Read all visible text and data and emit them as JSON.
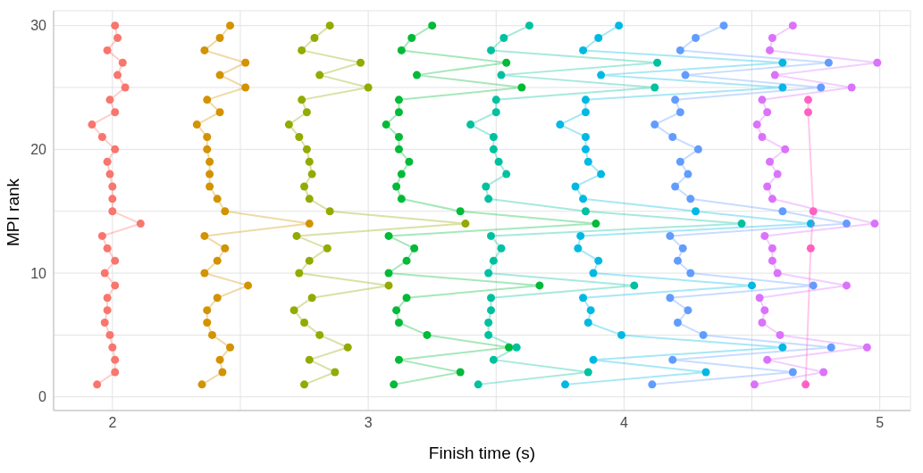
{
  "chart_data": {
    "type": "line",
    "xlabel": "Finish time (s)",
    "ylabel": "MPI rank",
    "marker": "circle",
    "line_style": "solid",
    "grid": true,
    "xlim": [
      1.77,
      5.12
    ],
    "xticks": [
      2,
      {
        "value": 2.5,
        "label": null
      },
      3,
      {
        "value": 3.5,
        "label": null
      },
      4,
      {
        "value": 4.5,
        "label": null
      },
      5
    ],
    "ylim": [
      -1.1,
      31.2
    ],
    "yticks": [
      0,
      {
        "value": 5,
        "label": null
      },
      10,
      {
        "value": 15,
        "label": null
      },
      20,
      {
        "value": 25,
        "label": null
      },
      30
    ],
    "series": [
      {
        "color": "#f8766d",
        "values": [
          1,
          2,
          3,
          4,
          5,
          6,
          7,
          8,
          9,
          10,
          11,
          12,
          13,
          14,
          15,
          16,
          17,
          18,
          19,
          20,
          21,
          22,
          23,
          24,
          25,
          26,
          27,
          28,
          29,
          30
        ],
        "x": [
          1.94,
          2.01,
          2.01,
          2.0,
          1.99,
          1.97,
          1.98,
          1.98,
          2.01,
          1.97,
          2.01,
          1.98,
          1.96,
          2.11,
          2.0,
          2.0,
          2.0,
          1.99,
          1.98,
          2.01,
          1.96,
          1.92,
          2.01,
          1.99,
          2.05,
          2.02,
          2.04,
          1.98,
          2.02,
          2.01
        ]
      },
      {
        "color": "#d39200",
        "values": [
          1,
          2,
          3,
          4,
          5,
          6,
          7,
          8,
          9,
          10,
          11,
          12,
          13,
          14,
          15,
          16,
          17,
          18,
          19,
          20,
          21,
          22,
          23,
          24,
          25,
          26,
          27,
          28,
          29,
          30
        ],
        "x": [
          2.35,
          2.43,
          2.42,
          2.46,
          2.39,
          2.37,
          2.37,
          2.41,
          2.53,
          2.36,
          2.41,
          2.44,
          2.36,
          2.77,
          2.44,
          2.41,
          2.38,
          2.38,
          2.38,
          2.37,
          2.37,
          2.33,
          2.42,
          2.37,
          2.52,
          2.42,
          2.52,
          2.36,
          2.42,
          2.46
        ]
      },
      {
        "color": "#93aa00",
        "values": [
          1,
          2,
          3,
          4,
          5,
          6,
          7,
          8,
          9,
          10,
          11,
          12,
          13,
          14,
          15,
          16,
          17,
          18,
          19,
          20,
          21,
          22,
          23,
          24,
          25,
          26,
          27,
          28,
          29,
          30
        ],
        "x": [
          2.75,
          2.87,
          2.77,
          2.92,
          2.81,
          2.75,
          2.71,
          2.78,
          3.08,
          2.73,
          2.77,
          2.84,
          2.72,
          3.38,
          2.85,
          2.77,
          2.75,
          2.78,
          2.77,
          2.76,
          2.73,
          2.69,
          2.76,
          2.74,
          3.0,
          2.81,
          2.97,
          2.74,
          2.79,
          2.85
        ]
      },
      {
        "color": "#00ba38",
        "values": [
          1,
          2,
          3,
          4,
          5,
          6,
          7,
          8,
          9,
          10,
          11,
          12,
          13,
          14,
          15,
          16,
          17,
          18,
          19,
          20,
          21,
          22,
          23,
          24,
          25,
          26,
          27,
          28,
          29,
          30
        ],
        "x": [
          3.1,
          3.36,
          3.12,
          3.55,
          3.23,
          3.12,
          3.11,
          3.15,
          3.67,
          3.08,
          3.15,
          3.18,
          3.08,
          3.89,
          3.36,
          3.13,
          3.11,
          3.13,
          3.16,
          3.12,
          3.12,
          3.07,
          3.12,
          3.12,
          3.6,
          3.19,
          3.54,
          3.13,
          3.17,
          3.25
        ]
      },
      {
        "color": "#00c19f",
        "values": [
          1,
          2,
          3,
          4,
          5,
          6,
          7,
          8,
          9,
          10,
          11,
          12,
          13,
          14,
          15,
          16,
          17,
          18,
          19,
          20,
          21,
          22,
          23,
          24,
          25,
          26,
          27,
          28,
          29,
          30
        ],
        "x": [
          3.43,
          3.86,
          3.49,
          3.58,
          3.47,
          3.47,
          3.48,
          3.48,
          4.04,
          3.47,
          3.49,
          3.52,
          3.48,
          4.46,
          3.85,
          3.47,
          3.46,
          3.54,
          3.51,
          3.49,
          3.49,
          3.4,
          3.5,
          3.5,
          4.12,
          3.52,
          4.13,
          3.48,
          3.53,
          3.63
        ]
      },
      {
        "color": "#00b9e3",
        "values": [
          1,
          2,
          3,
          4,
          5,
          6,
          7,
          8,
          9,
          10,
          11,
          12,
          13,
          14,
          15,
          16,
          17,
          18,
          19,
          20,
          21,
          22,
          23,
          24,
          25,
          26,
          27,
          28,
          29,
          30
        ],
        "x": [
          3.77,
          4.32,
          3.88,
          4.62,
          3.99,
          3.86,
          3.87,
          3.84,
          4.5,
          3.88,
          3.9,
          3.82,
          3.83,
          4.73,
          4.28,
          3.84,
          3.81,
          3.91,
          3.86,
          3.85,
          3.85,
          3.75,
          3.85,
          3.85,
          4.62,
          3.91,
          4.62,
          3.84,
          3.9,
          3.98
        ]
      },
      {
        "color": "#619cff",
        "values": [
          1,
          2,
          3,
          4,
          5,
          6,
          7,
          8,
          9,
          10,
          11,
          12,
          13,
          14,
          15,
          16,
          17,
          18,
          19,
          20,
          21,
          22,
          23,
          24,
          25,
          26,
          27,
          28,
          29,
          30
        ],
        "x": [
          4.11,
          4.66,
          4.19,
          4.81,
          4.31,
          4.21,
          4.25,
          4.18,
          4.74,
          4.26,
          4.21,
          4.23,
          4.18,
          4.87,
          4.62,
          4.26,
          4.2,
          4.25,
          4.22,
          4.29,
          4.19,
          4.12,
          4.22,
          4.2,
          4.77,
          4.24,
          4.8,
          4.22,
          4.28,
          4.39
        ]
      },
      {
        "color": "#db72fb",
        "values": [
          1,
          2,
          3,
          4,
          5,
          6,
          7,
          8,
          9,
          10,
          11,
          12,
          13,
          14,
          null,
          16,
          17,
          18,
          19,
          20,
          21,
          22,
          23,
          24,
          25,
          26,
          27,
          28,
          29,
          30
        ],
        "x": [
          4.51,
          4.78,
          4.56,
          4.95,
          4.61,
          4.54,
          4.55,
          4.53,
          4.87,
          4.6,
          4.58,
          4.58,
          4.55,
          4.98,
          null,
          4.58,
          4.56,
          4.6,
          4.57,
          4.63,
          4.54,
          4.52,
          4.56,
          4.54,
          4.89,
          4.59,
          4.99,
          4.57,
          4.58,
          4.66
        ]
      },
      {
        "color": "#ff61c3",
        "values": [
          1,
          12,
          15,
          23,
          24
        ],
        "x": [
          4.71,
          4.73,
          4.74,
          4.72,
          4.72
        ]
      }
    ]
  }
}
